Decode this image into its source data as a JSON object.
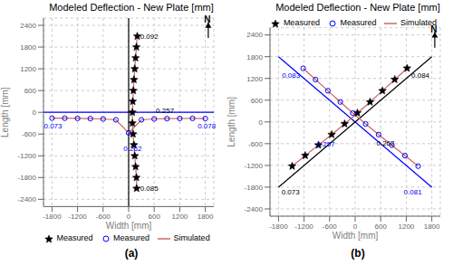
{
  "chart_data": [
    {
      "type": "scatter",
      "title": "Modeled Deflection - New Plate [mm]",
      "subtitle": "(a)",
      "xlabel": "Width [mm]",
      "ylabel": "Length [mm]",
      "xlim": [
        -2000,
        2000
      ],
      "ylim": [
        -2600,
        2600
      ],
      "xticks": [
        -1800,
        -1200,
        -600,
        0,
        600,
        1200,
        1800
      ],
      "yticks": [
        -2400,
        -1800,
        -1200,
        -600,
        0,
        600,
        1200,
        1800,
        2400
      ],
      "grid": true,
      "legend": "lower left",
      "series": [
        {
          "name": "Measured",
          "marker": "star",
          "color": "black",
          "x": [
            202.4,
            182.6,
            162.8,
            143,
            125.4,
            110,
            96.8,
            88,
            88,
            103.4,
            123.2,
            143,
            162.8,
            182.6,
            187
          ],
          "y": [
            2100,
            1800,
            1500,
            1200,
            900,
            600,
            300,
            0,
            -300,
            -600,
            -900,
            -1200,
            -1500,
            -1800,
            -2100
          ]
        },
        {
          "name": "Measured",
          "marker": "circle",
          "color": "blue",
          "x": [
            -1800,
            -1500,
            -1200,
            -900,
            -600,
            -300,
            0,
            300,
            600,
            900,
            1200,
            1500,
            1800
          ],
          "y": [
            -160.6,
            -162.8,
            -167.2,
            -173.8,
            -182.6,
            -206.8,
            -565.4,
            -206.8,
            -182.6,
            -173.8,
            -169.4,
            -167.2,
            -171.6
          ]
        },
        {
          "name": "Simulated",
          "type": "line",
          "color": "#cc6666",
          "lines": [
            {
              "x": [
                202.4,
                182.6,
                162.8,
                143,
                125.4,
                110,
                96.8,
                88,
                88,
                103.4,
                123.2,
                143,
                162.8,
                182.6,
                187
              ],
              "y": [
                2100,
                1800,
                1500,
                1200,
                900,
                600,
                300,
                0,
                -300,
                -600,
                -900,
                -1200,
                -1500,
                -1800,
                -2100
              ]
            },
            {
              "x": [
                -1800,
                -1500,
                -1200,
                -900,
                -600,
                -300,
                0,
                300,
                600,
                900,
                1200,
                1500,
                1800
              ],
              "y": [
                -160.6,
                -162.8,
                -167.2,
                -173.8,
                -182.6,
                -206.8,
                -565.4,
                -206.8,
                -182.6,
                -173.8,
                -169.4,
                -167.2,
                -171.6
              ]
            }
          ]
        }
      ],
      "reference_lines": [
        {
          "y": 0,
          "color": "blue"
        },
        {
          "x": 0,
          "color": "black"
        }
      ],
      "annotations": [
        {
          "text": "0.092",
          "x": 270,
          "y": 2100,
          "color": "black"
        },
        {
          "text": "0.257",
          "x": 640,
          "y": 50,
          "color": "black"
        },
        {
          "text": "0.073",
          "x": -1990,
          "y": -380,
          "color": "blue"
        },
        {
          "text": "0.078",
          "x": 1620,
          "y": -380,
          "color": "blue"
        },
        {
          "text": "0.262",
          "x": -120,
          "y": -1000,
          "color": "blue"
        },
        {
          "text": "0.085",
          "x": 270,
          "y": -2100,
          "color": "black"
        }
      ],
      "north_arrow": {
        "text": "N",
        "x": 1850,
        "y": 2560,
        "from": [
          1870,
          2050
        ],
        "to": [
          1870,
          2480
        ],
        "color": "black"
      }
    },
    {
      "type": "scatter",
      "title": "Modeled Deflection - New Plate [mm]",
      "subtitle": "(b)",
      "xlabel": "Width [mm]",
      "ylabel": "Length [mm]",
      "xlim": [
        -2000,
        2000
      ],
      "ylim": [
        -2600,
        2600
      ],
      "xticks": [
        -1800,
        -1200,
        -600,
        0,
        600,
        1200,
        1800
      ],
      "yticks": [
        -2400,
        -1800,
        -1200,
        -600,
        0,
        600,
        1200,
        1800,
        2400
      ],
      "grid": true,
      "legend": "upper right",
      "series": [
        {
          "name": "Measured",
          "marker": "star",
          "color": "black",
          "x": [
            1219.3267,
            930.2161,
            641.1056,
            350.4394,
            53.5506,
            -246.4494,
            -551.1163,
            -862.0057,
            -1172.8952,
            -1479.1177
          ],
          "y": [
            1480.6733,
            1169.7839,
            858.8944,
            549.5606,
            246.4494,
            -53.5506,
            -348.8837,
            -637.9943,
            -927.1048,
            -1220.8823
          ]
        },
        {
          "name": "Measured",
          "marker": "circle",
          "color": "blue",
          "x": [
            -1220.8823,
            -930.2161,
            -639.5499,
            -348.8837,
            -55.1063,
            244.8937,
            551.1163,
            860.4501,
            1169.7839,
            1479.1177
          ],
          "y": [
            1479.1177,
            1169.7839,
            860.4501,
            551.1163,
            244.8937,
            -55.1063,
            -348.8837,
            -639.5499,
            -930.2161,
            -1220.8823
          ]
        },
        {
          "name": "Simulated",
          "type": "line",
          "color": "#cc6666",
          "lines": [
            {
              "x": [
                -1220.8823,
                -930.2161,
                -639.5499,
                -348.8837,
                -55.1063,
                244.8937,
                551.1163,
                860.4501,
                1169.7839,
                1479.1177
              ],
              "y": [
                1479.1177,
                1169.7839,
                860.4501,
                551.1163,
                244.8937,
                -55.1063,
                -348.8837,
                -639.5499,
                -930.2161,
                -1220.8823
              ]
            },
            {
              "x": [
                1219.3267,
                930.2161,
                641.1056,
                350.4394,
                53.5506,
                -246.4494,
                -551.1163,
                -862.0057,
                -1172.8952,
                -1479.1177
              ],
              "y": [
                1480.6733,
                1169.7839,
                858.8944,
                549.5606,
                246.4494,
                -53.5506,
                -348.8837,
                -637.9943,
                -927.1048,
                -1220.8823
              ]
            }
          ]
        }
      ],
      "reference_lines": [
        {
          "x": [
            -1800,
            1800
          ],
          "y": [
            1800,
            -1800
          ],
          "color": "blue"
        },
        {
          "x": [
            1800,
            -1800
          ],
          "y": [
            1800,
            -1800
          ],
          "color": "black"
        }
      ],
      "annotations": [
        {
          "text": "0.083",
          "x": -1720,
          "y": 1280,
          "color": "blue"
        },
        {
          "text": "0.084",
          "x": 1320,
          "y": 1280,
          "color": "black"
        },
        {
          "text": "0.257",
          "x": -900,
          "y": -620,
          "color": "blue"
        },
        {
          "text": "0.262",
          "x": 500,
          "y": -580,
          "color": "black"
        },
        {
          "text": "0.073",
          "x": -1730,
          "y": -1950,
          "color": "black"
        },
        {
          "text": "0.081",
          "x": 1140,
          "y": -1950,
          "color": "blue"
        }
      ],
      "north_arrow": {
        "text": "N",
        "x": 1850,
        "y": 2560,
        "from": [
          1870,
          2050
        ],
        "to": [
          1870,
          2480
        ],
        "color": "black"
      }
    }
  ]
}
